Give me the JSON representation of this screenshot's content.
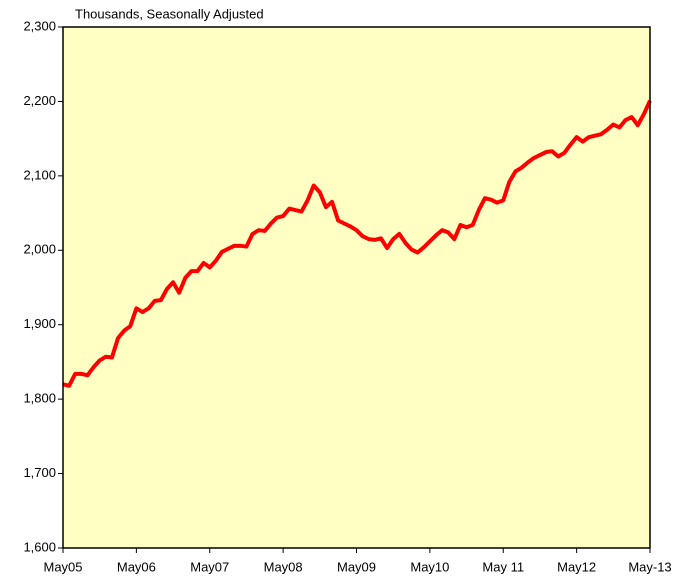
{
  "chart_data": {
    "type": "line",
    "title": "Thousands, Seasonally Adjusted",
    "categories": [
      "May05",
      null,
      null,
      null,
      null,
      null,
      null,
      null,
      null,
      null,
      null,
      null,
      "May06",
      null,
      null,
      null,
      null,
      null,
      null,
      null,
      null,
      null,
      null,
      null,
      "May07",
      null,
      null,
      null,
      null,
      null,
      null,
      null,
      null,
      null,
      null,
      null,
      "May08",
      null,
      null,
      null,
      null,
      null,
      null,
      null,
      null,
      null,
      null,
      null,
      "May09",
      null,
      null,
      null,
      null,
      null,
      null,
      null,
      null,
      null,
      null,
      null,
      "May10",
      null,
      null,
      null,
      null,
      null,
      null,
      null,
      null,
      null,
      null,
      null,
      "May 11",
      null,
      null,
      null,
      null,
      null,
      null,
      null,
      null,
      null,
      null,
      null,
      "May12",
      null,
      null,
      null,
      null,
      null,
      null,
      null,
      null,
      null,
      null,
      null,
      "May-13"
    ],
    "series": [
      {
        "color": "#ff0000",
        "values": [
          1820,
          1818,
          1834,
          1834,
          1832,
          1843,
          1852,
          1857,
          1856,
          1882,
          1892,
          1898,
          1922,
          1917,
          1922,
          1932,
          1933,
          1948,
          1957,
          1943,
          1963,
          1972,
          1972,
          1983,
          1977,
          1986,
          1998,
          2002,
          2006,
          2006,
          2005,
          2022,
          2027,
          2026,
          2036,
          2044,
          2046,
          2056,
          2054,
          2052,
          2067,
          2087,
          2078,
          2058,
          2065,
          2040,
          2036,
          2032,
          2027,
          2019,
          2015,
          2014,
          2016,
          2003,
          2015,
          2022,
          2010,
          2001,
          1997,
          2004,
          2012,
          2020,
          2027,
          2024,
          2015,
          2034,
          2031,
          2034,
          2054,
          2070,
          2068,
          2064,
          2067,
          2092,
          2106,
          2111,
          2118,
          2124,
          2128,
          2132,
          2133,
          2126,
          2131,
          2142,
          2152,
          2146,
          2152,
          2154,
          2156,
          2162,
          2169,
          2165,
          2175,
          2179,
          2168,
          2183,
          2201
        ]
      }
    ],
    "ylim": [
      1600,
      2300
    ],
    "yticks": [
      {
        "value": 1600,
        "label": "1,600"
      },
      {
        "value": 1700,
        "label": "1,700"
      },
      {
        "value": 1800,
        "label": "1,800"
      },
      {
        "value": 1900,
        "label": "1,900"
      },
      {
        "value": 2000,
        "label": "2,000"
      },
      {
        "value": 2100,
        "label": "2,100"
      },
      {
        "value": 2200,
        "label": "2,200"
      },
      {
        "value": 2300,
        "label": "2,300"
      }
    ],
    "plot_background": "#ffffc4"
  }
}
